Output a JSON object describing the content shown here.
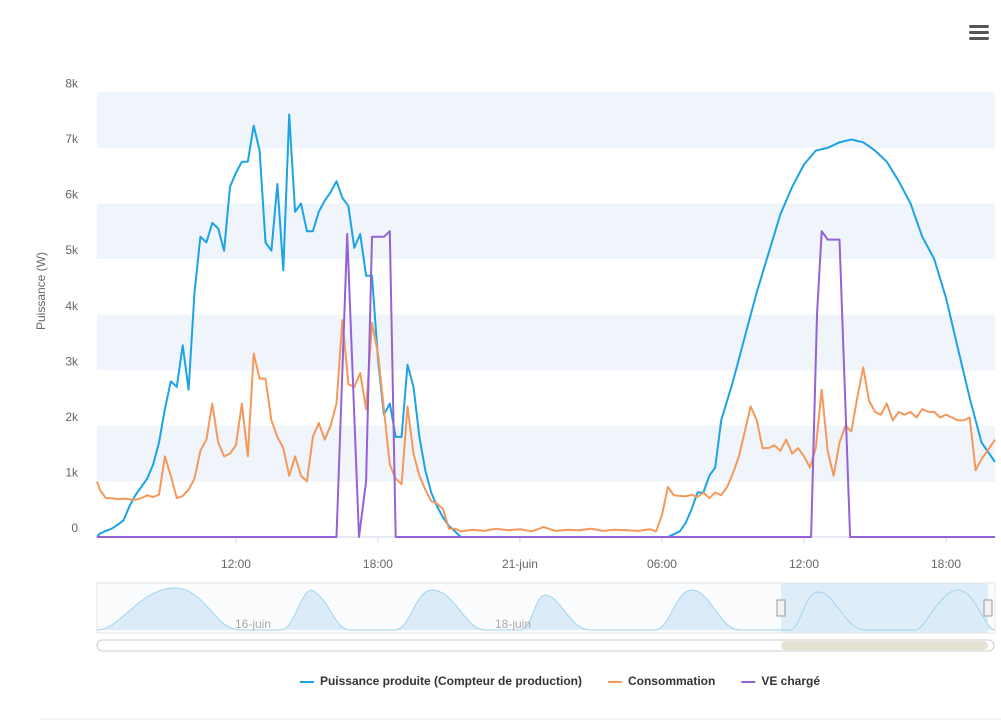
{
  "chart_data": {
    "type": "line",
    "y_label": "Puissance (W)",
    "xlim": [
      6.13,
      44.07
    ],
    "xticks": [
      {
        "value": 12,
        "label": "12:00"
      },
      {
        "value": 18,
        "label": "18:00"
      },
      {
        "value": 24,
        "label": "21-juin"
      },
      {
        "value": 30,
        "label": "06:00"
      },
      {
        "value": 36,
        "label": "12:00"
      },
      {
        "value": 42,
        "label": "18:00"
      }
    ],
    "ylim": [
      0,
      8850
    ],
    "yticks": [
      0,
      {
        "value": 1000,
        "label": "1k"
      },
      {
        "value": 2000,
        "label": "2k"
      },
      {
        "value": 3000,
        "label": "3k"
      },
      {
        "value": 4000,
        "label": "4k"
      },
      {
        "value": 5000,
        "label": "5k"
      },
      {
        "value": 6000,
        "label": "6k"
      },
      {
        "value": 7000,
        "label": "7k"
      },
      {
        "value": 8000,
        "label": "8k"
      }
    ],
    "alternate_grid_color": "#eff5fb",
    "legend": "bottom",
    "navigator": {
      "labels": [
        "16-juin",
        "18-juin"
      ]
    },
    "series": [
      {
        "name": "Puissance produite (Compteur de production)",
        "color": "#1ca3e6",
        "x": [
          6.13,
          6.25,
          6.5,
          6.75,
          7.0,
          7.25,
          7.5,
          7.75,
          8.0,
          8.25,
          8.5,
          8.75,
          9.0,
          9.25,
          9.5,
          9.75,
          10.0,
          10.25,
          10.5,
          10.75,
          11.0,
          11.25,
          11.5,
          11.75,
          12.0,
          12.25,
          12.5,
          12.75,
          13.0,
          13.25,
          13.5,
          13.75,
          14.0,
          14.25,
          14.5,
          14.75,
          15.0,
          15.25,
          15.5,
          15.75,
          16.0,
          16.25,
          16.5,
          16.75,
          17.0,
          17.25,
          17.5,
          17.75,
          18.0,
          18.25,
          18.5,
          18.75,
          19.0,
          19.25,
          19.5,
          19.75,
          20.0,
          20.25,
          20.5,
          20.75,
          21.0,
          21.25,
          21.5,
          30.25,
          30.5,
          30.75,
          31.0,
          31.25,
          31.5,
          31.75,
          32.0,
          32.25,
          32.5,
          33,
          33.5,
          34,
          34.5,
          35,
          35.5,
          36,
          36.5,
          37,
          37.5,
          38,
          38.5,
          39,
          39.5,
          40,
          40.5,
          41,
          41.5,
          42,
          42.5,
          43,
          43.5,
          44.07
        ],
        "values": [
          0,
          60,
          110,
          150,
          220,
          300,
          550,
          750,
          900,
          1050,
          1300,
          1700,
          2300,
          2800,
          2700,
          3450,
          2650,
          4400,
          5400,
          5300,
          5650,
          5550,
          5150,
          6300,
          6550,
          6750,
          6750,
          7400,
          6950,
          5300,
          5150,
          6350,
          4800,
          7600,
          5850,
          6000,
          5500,
          5500,
          5850,
          6050,
          6200,
          6400,
          6100,
          5950,
          5200,
          5450,
          4700,
          4700,
          3200,
          2200,
          2400,
          1800,
          1800,
          3100,
          2700,
          1800,
          1200,
          800,
          550,
          350,
          200,
          100,
          0,
          0,
          50,
          100,
          250,
          500,
          800,
          800,
          1100,
          1250,
          2100,
          2800,
          3600,
          4400,
          5100,
          5800,
          6300,
          6700,
          6950,
          7000,
          7100,
          7150,
          7100,
          6950,
          6750,
          6400,
          6000,
          5400,
          5000,
          4300,
          3400,
          2500,
          1700,
          1350
        ]
      },
      {
        "name": "Consommation",
        "color": "#f4995a",
        "x": [
          6.13,
          6.25,
          6.5,
          6.75,
          7.0,
          7.25,
          7.5,
          7.75,
          8.0,
          8.25,
          8.5,
          8.75,
          9.0,
          9.25,
          9.5,
          9.75,
          10.0,
          10.25,
          10.5,
          10.75,
          11.0,
          11.25,
          11.5,
          11.75,
          12.0,
          12.25,
          12.5,
          12.75,
          13.0,
          13.25,
          13.5,
          13.75,
          14.0,
          14.25,
          14.5,
          14.75,
          15.0,
          15.25,
          15.5,
          15.75,
          16.0,
          16.25,
          16.5,
          16.75,
          17.0,
          17.25,
          17.5,
          17.75,
          18.0,
          18.25,
          18.5,
          18.75,
          19.0,
          19.25,
          19.5,
          19.75,
          20.0,
          20.25,
          20.5,
          20.75,
          21.0,
          21.25,
          21.5,
          22,
          22.5,
          23,
          23.5,
          24,
          24.5,
          25,
          25.5,
          26,
          26.5,
          27,
          27.5,
          28,
          28.5,
          29,
          29.5,
          29.75,
          30.0,
          30.25,
          30.5,
          30.75,
          31.0,
          31.25,
          31.5,
          31.75,
          32.0,
          32.25,
          32.5,
          32.75,
          33.0,
          33.25,
          33.5,
          33.75,
          34.0,
          34.25,
          34.5,
          34.75,
          35.0,
          35.25,
          35.5,
          35.75,
          36.0,
          36.25,
          36.5,
          36.75,
          37.0,
          37.25,
          37.5,
          37.75,
          38.0,
          38.25,
          38.5,
          38.75,
          39.0,
          39.25,
          39.5,
          39.75,
          40.0,
          40.25,
          40.5,
          40.75,
          41.0,
          41.25,
          41.5,
          41.75,
          42.0,
          42.25,
          42.5,
          42.75,
          43.0,
          43.25,
          43.5,
          43.75,
          44.07
        ],
        "values": [
          1000,
          850,
          700,
          700,
          680,
          690,
          680,
          670,
          700,
          750,
          720,
          760,
          1450,
          1100,
          700,
          740,
          850,
          1050,
          1550,
          1750,
          2400,
          1700,
          1450,
          1500,
          1650,
          2400,
          1450,
          3300,
          2850,
          2850,
          2100,
          1800,
          1600,
          1100,
          1450,
          1100,
          1000,
          1800,
          2050,
          1750,
          2000,
          2400,
          3900,
          2750,
          2700,
          2950,
          2300,
          3850,
          3300,
          2300,
          1300,
          1050,
          950,
          2350,
          1500,
          1100,
          850,
          650,
          600,
          500,
          150,
          150,
          100,
          130,
          110,
          150,
          120,
          140,
          100,
          180,
          110,
          130,
          120,
          150,
          110,
          130,
          120,
          110,
          140,
          100,
          400,
          900,
          750,
          740,
          730,
          760,
          720,
          800,
          700,
          800,
          750,
          900,
          1150,
          1450,
          1900,
          2350,
          2100,
          1600,
          1600,
          1650,
          1550,
          1750,
          1500,
          1600,
          1450,
          1250,
          1600,
          2650,
          1550,
          1100,
          1700,
          2000,
          1900,
          2500,
          3050,
          2450,
          2250,
          2200,
          2400,
          2100,
          2250,
          2200,
          2250,
          2150,
          2300,
          2250,
          2250,
          2150,
          2200,
          2150,
          2100,
          2100,
          2150,
          1200,
          1400,
          1550,
          1750
        ]
      },
      {
        "name": "VE chargé",
        "color": "#9461d6",
        "x": [
          6.13,
          16.25,
          16.7,
          17.2,
          17.5,
          17.75,
          18.25,
          18.5,
          18.75,
          36.3,
          36.55,
          36.75,
          37.0,
          37.5,
          37.95,
          44.07
        ],
        "values": [
          0,
          0,
          5450,
          0,
          1000,
          5400,
          5400,
          5500,
          0,
          0,
          4000,
          5500,
          5350,
          5350,
          0,
          0
        ]
      }
    ]
  }
}
